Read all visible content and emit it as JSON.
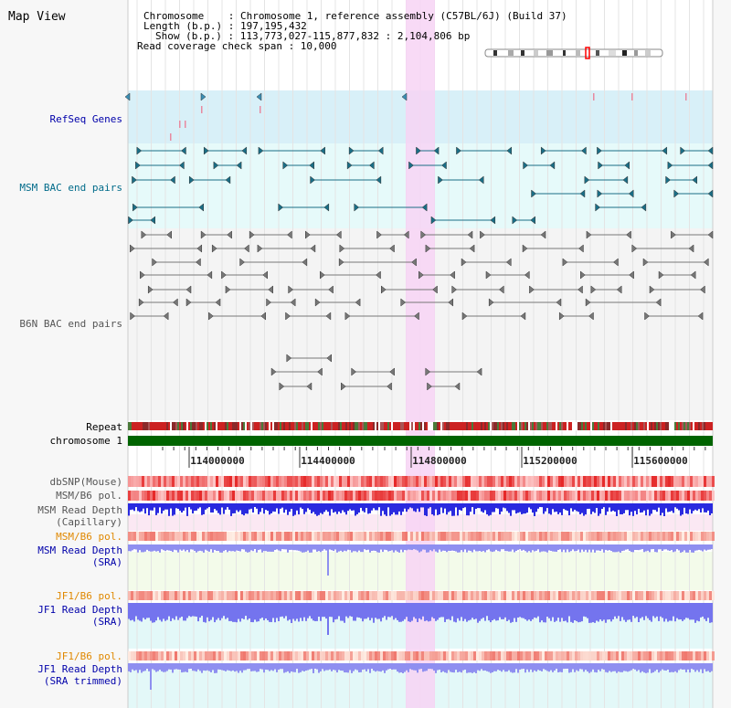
{
  "view": {
    "title": "Map View",
    "info_chromosome": "Chromosome    : Chromosome 1, reference assembly (C57BL/6J) (Build 37)",
    "info_length": "Length (b.p.) : 197,195,432",
    "info_show": "Show (b.p.) : 113,773,027-115,877,832 : 2,104,806 bp",
    "info_span": "Read coverage check span : 10,000"
  },
  "tracks": {
    "refseq": "RefSeq Genes",
    "msm_bac": "MSM BAC end pairs",
    "b6n_bac": "B6N BAC end pairs",
    "repeat": "Repeat",
    "chromosome": "chromosome 1",
    "dbsnp": "dbSNP(Mouse)",
    "msm_b6_pol_1": "MSM/B6 pol.",
    "msm_depth_cap": "MSM Read Depth\n(Capillary)",
    "msm_b6_pol_2": "MSM/B6 pol.",
    "msm_depth_sra": "MSM Read Depth\n(SRA)",
    "jf1_b6_pol_1": "JF1/B6 pol.",
    "jf1_depth_sra": "JF1 Read Depth\n(SRA)",
    "jf1_b6_pol_2": "JF1/B6 pol.",
    "jf1_depth_trim": "JF1 Read Depth\n(SRA trimmed)"
  },
  "axis": {
    "ticks": [
      "114000000",
      "114400000",
      "114800000",
      "115200000",
      "115600000"
    ]
  },
  "colors": {
    "refseq_label": "#0000aa",
    "msm_label": "#006b8a",
    "b6n_label": "#555555",
    "pol_msm_label": "#e08800",
    "sra_label": "#0000aa",
    "highlight": "#f7d4f4",
    "chrom_bar": "#006400"
  }
}
